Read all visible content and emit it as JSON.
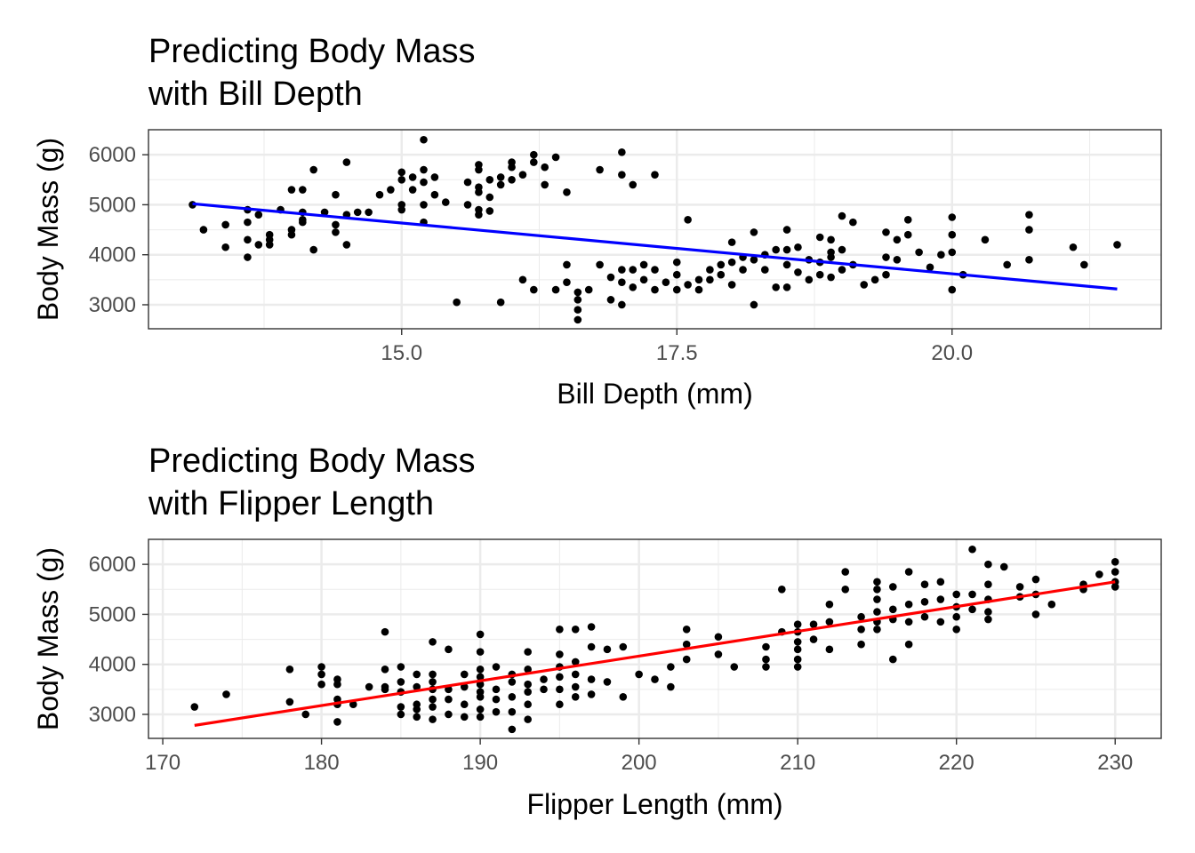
{
  "chart_data": [
    {
      "type": "scatter",
      "title": "Predicting Body Mass\nwith Bill Depth",
      "title_lines": [
        "Predicting Body Mass",
        "with Bill Depth"
      ],
      "xlabel": "Bill Depth (mm)",
      "ylabel": "Body Mass (g)",
      "xlim": [
        12.7,
        21.9
      ],
      "ylim": [
        2520,
        6500
      ],
      "xticks": [
        15.0,
        17.5,
        20.0
      ],
      "xtick_labels": [
        "15.0",
        "17.5",
        "20.0"
      ],
      "yticks": [
        3000,
        4000,
        5000,
        6000
      ],
      "ytick_labels": [
        "3000",
        "4000",
        "5000",
        "6000"
      ],
      "grid": true,
      "point_color": "#000000",
      "fit_line": {
        "color": "#0000ff",
        "x": [
          13.1,
          21.5
        ],
        "y": [
          5020,
          3315
        ]
      },
      "points": [
        [
          13.1,
          5000
        ],
        [
          13.2,
          4500
        ],
        [
          13.4,
          4600
        ],
        [
          13.4,
          4150
        ],
        [
          13.6,
          4900
        ],
        [
          13.6,
          4650
        ],
        [
          13.6,
          4300
        ],
        [
          13.6,
          3950
        ],
        [
          13.7,
          4800
        ],
        [
          13.7,
          4200
        ],
        [
          13.8,
          4400
        ],
        [
          13.8,
          4300
        ],
        [
          13.8,
          4200
        ],
        [
          13.9,
          4900
        ],
        [
          14.0,
          5300
        ],
        [
          14.0,
          4500
        ],
        [
          14.0,
          4400
        ],
        [
          14.1,
          5300
        ],
        [
          14.1,
          4850
        ],
        [
          14.1,
          4700
        ],
        [
          14.1,
          4650
        ],
        [
          14.2,
          5700
        ],
        [
          14.2,
          4100
        ],
        [
          14.3,
          4850
        ],
        [
          14.4,
          5200
        ],
        [
          14.4,
          4600
        ],
        [
          14.4,
          4450
        ],
        [
          14.5,
          5850
        ],
        [
          14.5,
          4800
        ],
        [
          14.5,
          4200
        ],
        [
          14.6,
          4850
        ],
        [
          14.7,
          4850
        ],
        [
          14.8,
          5200
        ],
        [
          14.9,
          5300
        ],
        [
          15.0,
          5650
        ],
        [
          15.0,
          5500
        ],
        [
          15.0,
          5000
        ],
        [
          15.0,
          4900
        ],
        [
          15.1,
          5550
        ],
        [
          15.1,
          5300
        ],
        [
          15.2,
          6300
        ],
        [
          15.2,
          5700
        ],
        [
          15.2,
          5450
        ],
        [
          15.2,
          5000
        ],
        [
          15.2,
          4650
        ],
        [
          15.3,
          5550
        ],
        [
          15.3,
          5200
        ],
        [
          15.4,
          5050
        ],
        [
          15.5,
          3050
        ],
        [
          15.6,
          5450
        ],
        [
          15.6,
          5000
        ],
        [
          15.7,
          5800
        ],
        [
          15.7,
          5700
        ],
        [
          15.7,
          5350
        ],
        [
          15.7,
          5250
        ],
        [
          15.7,
          4900
        ],
        [
          15.7,
          4800
        ],
        [
          15.8,
          5500
        ],
        [
          15.8,
          5150
        ],
        [
          15.8,
          4875
        ],
        [
          15.9,
          5550
        ],
        [
          15.9,
          5400
        ],
        [
          15.9,
          3050
        ],
        [
          16.0,
          5850
        ],
        [
          16.0,
          5750
        ],
        [
          16.0,
          5500
        ],
        [
          16.1,
          5600
        ],
        [
          16.1,
          3500
        ],
        [
          16.2,
          6000
        ],
        [
          16.2,
          5850
        ],
        [
          16.2,
          3300
        ],
        [
          16.3,
          5750
        ],
        [
          16.3,
          5400
        ],
        [
          16.4,
          5950
        ],
        [
          16.4,
          3300
        ],
        [
          16.5,
          5250
        ],
        [
          16.5,
          3800
        ],
        [
          16.5,
          3450
        ],
        [
          16.6,
          3250
        ],
        [
          16.6,
          3100
        ],
        [
          16.6,
          2900
        ],
        [
          16.6,
          2700
        ],
        [
          16.7,
          3300
        ],
        [
          16.8,
          5700
        ],
        [
          16.8,
          3800
        ],
        [
          16.9,
          3550
        ],
        [
          16.9,
          3100
        ],
        [
          17.0,
          6050
        ],
        [
          17.0,
          5600
        ],
        [
          17.0,
          3700
        ],
        [
          17.0,
          3450
        ],
        [
          17.0,
          3000
        ],
        [
          17.1,
          5400
        ],
        [
          17.1,
          3700
        ],
        [
          17.1,
          3350
        ],
        [
          17.2,
          3800
        ],
        [
          17.2,
          3500
        ],
        [
          17.3,
          5600
        ],
        [
          17.3,
          3700
        ],
        [
          17.3,
          3300
        ],
        [
          17.4,
          3450
        ],
        [
          17.5,
          3850
        ],
        [
          17.5,
          3600
        ],
        [
          17.5,
          3300
        ],
        [
          17.6,
          4700
        ],
        [
          17.6,
          3400
        ],
        [
          17.7,
          3500
        ],
        [
          17.7,
          3300
        ],
        [
          17.8,
          3700
        ],
        [
          17.8,
          3500
        ],
        [
          17.9,
          3800
        ],
        [
          17.9,
          3600
        ],
        [
          18.0,
          4250
        ],
        [
          18.0,
          3850
        ],
        [
          18.0,
          3400
        ],
        [
          18.1,
          3950
        ],
        [
          18.1,
          3700
        ],
        [
          18.2,
          4450
        ],
        [
          18.2,
          3900
        ],
        [
          18.2,
          3000
        ],
        [
          18.3,
          4000
        ],
        [
          18.3,
          3700
        ],
        [
          18.4,
          4100
        ],
        [
          18.4,
          3350
        ],
        [
          18.5,
          4500
        ],
        [
          18.5,
          4100
        ],
        [
          18.5,
          3800
        ],
        [
          18.5,
          3350
        ],
        [
          18.6,
          4150
        ],
        [
          18.6,
          3650
        ],
        [
          18.7,
          3900
        ],
        [
          18.7,
          3500
        ],
        [
          18.8,
          4350
        ],
        [
          18.8,
          3850
        ],
        [
          18.8,
          3600
        ],
        [
          18.9,
          4300
        ],
        [
          18.9,
          4050
        ],
        [
          18.9,
          3950
        ],
        [
          18.9,
          3550
        ],
        [
          19.0,
          4775
        ],
        [
          19.0,
          4100
        ],
        [
          19.0,
          3700
        ],
        [
          19.1,
          4650
        ],
        [
          19.1,
          3800
        ],
        [
          19.2,
          3400
        ],
        [
          19.3,
          3500
        ],
        [
          19.4,
          4450
        ],
        [
          19.4,
          3950
        ],
        [
          19.4,
          3600
        ],
        [
          19.5,
          4300
        ],
        [
          19.5,
          3900
        ],
        [
          19.6,
          4700
        ],
        [
          19.6,
          4400
        ],
        [
          19.7,
          4050
        ],
        [
          19.8,
          3750
        ],
        [
          19.9,
          4000
        ],
        [
          20.0,
          4750
        ],
        [
          20.0,
          4400
        ],
        [
          20.0,
          4050
        ],
        [
          20.0,
          3300
        ],
        [
          20.1,
          3600
        ],
        [
          20.3,
          4300
        ],
        [
          20.5,
          3800
        ],
        [
          20.7,
          4800
        ],
        [
          20.7,
          4500
        ],
        [
          20.7,
          3900
        ],
        [
          21.1,
          4150
        ],
        [
          21.2,
          3800
        ],
        [
          21.5,
          4200
        ]
      ]
    },
    {
      "type": "scatter",
      "title": "Predicting Body Mass\nwith Flipper Length",
      "title_lines": [
        "Predicting Body Mass",
        "with Flipper Length"
      ],
      "xlabel": "Flipper Length (mm)",
      "ylabel": "Body Mass (g)",
      "xlim": [
        169.1,
        232.9
      ],
      "ylim": [
        2520,
        6500
      ],
      "xticks": [
        170,
        180,
        190,
        200,
        210,
        220,
        230
      ],
      "xtick_labels": [
        "170",
        "180",
        "190",
        "200",
        "210",
        "220",
        "230"
      ],
      "yticks": [
        3000,
        4000,
        5000,
        6000
      ],
      "ytick_labels": [
        "3000",
        "4000",
        "5000",
        "6000"
      ],
      "grid": true,
      "point_color": "#000000",
      "fit_line": {
        "color": "#ff0000",
        "x": [
          172,
          230
        ],
        "y": [
          2780,
          5650
        ]
      },
      "points": [
        [
          172,
          3150
        ],
        [
          174,
          3400
        ],
        [
          178,
          3900
        ],
        [
          178,
          3250
        ],
        [
          179,
          3000
        ],
        [
          180,
          3950
        ],
        [
          180,
          3800
        ],
        [
          180,
          3600
        ],
        [
          181,
          3700
        ],
        [
          181,
          3600
        ],
        [
          181,
          3300
        ],
        [
          181,
          3200
        ],
        [
          181,
          2850
        ],
        [
          182,
          3200
        ],
        [
          183,
          3550
        ],
        [
          184,
          4650
        ],
        [
          184,
          3900
        ],
        [
          184,
          3550
        ],
        [
          184,
          3500
        ],
        [
          185,
          3950
        ],
        [
          185,
          3650
        ],
        [
          185,
          3450
        ],
        [
          185,
          3150
        ],
        [
          185,
          3000
        ],
        [
          186,
          3800
        ],
        [
          186,
          3550
        ],
        [
          186,
          3200
        ],
        [
          186,
          3100
        ],
        [
          186,
          2950
        ],
        [
          187,
          4450
        ],
        [
          187,
          3800
        ],
        [
          187,
          3650
        ],
        [
          187,
          3500
        ],
        [
          187,
          3300
        ],
        [
          187,
          3150
        ],
        [
          187,
          2900
        ],
        [
          188,
          4300
        ],
        [
          188,
          3500
        ],
        [
          188,
          3300
        ],
        [
          188,
          3000
        ],
        [
          189,
          3800
        ],
        [
          189,
          3550
        ],
        [
          189,
          3200
        ],
        [
          189,
          2950
        ],
        [
          190,
          4600
        ],
        [
          190,
          4250
        ],
        [
          190,
          3900
        ],
        [
          190,
          3750
        ],
        [
          190,
          3600
        ],
        [
          190,
          3450
        ],
        [
          190,
          3350
        ],
        [
          190,
          3100
        ],
        [
          190,
          2950
        ],
        [
          191,
          3950
        ],
        [
          191,
          3500
        ],
        [
          191,
          3300
        ],
        [
          191,
          3050
        ],
        [
          192,
          3800
        ],
        [
          192,
          3650
        ],
        [
          192,
          3350
        ],
        [
          192,
          3050
        ],
        [
          192,
          2700
        ],
        [
          193,
          4250
        ],
        [
          193,
          3900
        ],
        [
          193,
          3600
        ],
        [
          193,
          3450
        ],
        [
          193,
          3200
        ],
        [
          193,
          2900
        ],
        [
          194,
          3700
        ],
        [
          194,
          3500
        ],
        [
          195,
          4700
        ],
        [
          195,
          4200
        ],
        [
          195,
          3950
        ],
        [
          195,
          3750
        ],
        [
          195,
          3500
        ],
        [
          195,
          3200
        ],
        [
          196,
          4700
        ],
        [
          196,
          4050
        ],
        [
          196,
          3800
        ],
        [
          196,
          3550
        ],
        [
          196,
          3350
        ],
        [
          197,
          4750
        ],
        [
          197,
          4350
        ],
        [
          197,
          3700
        ],
        [
          197,
          3400
        ],
        [
          198,
          4300
        ],
        [
          198,
          3650
        ],
        [
          199,
          4350
        ],
        [
          199,
          3350
        ],
        [
          200,
          3800
        ],
        [
          201,
          3700
        ],
        [
          202,
          3950
        ],
        [
          202,
          3550
        ],
        [
          203,
          4700
        ],
        [
          203,
          4400
        ],
        [
          203,
          4100
        ],
        [
          205,
          4550
        ],
        [
          205,
          4200
        ],
        [
          206,
          3950
        ],
        [
          208,
          4350
        ],
        [
          208,
          4100
        ],
        [
          208,
          3950
        ],
        [
          209,
          5500
        ],
        [
          209,
          4650
        ],
        [
          210,
          4800
        ],
        [
          210,
          4650
        ],
        [
          210,
          4450
        ],
        [
          210,
          4300
        ],
        [
          210,
          4100
        ],
        [
          210,
          3950
        ],
        [
          211,
          4800
        ],
        [
          211,
          4500
        ],
        [
          212,
          5200
        ],
        [
          212,
          4850
        ],
        [
          212,
          4300
        ],
        [
          213,
          5850
        ],
        [
          213,
          5500
        ],
        [
          214,
          4950
        ],
        [
          214,
          4700
        ],
        [
          214,
          4400
        ],
        [
          215,
          5650
        ],
        [
          215,
          5500
        ],
        [
          215,
          5300
        ],
        [
          215,
          5050
        ],
        [
          215,
          4850
        ],
        [
          215,
          4700
        ],
        [
          216,
          5550
        ],
        [
          216,
          5100
        ],
        [
          216,
          4900
        ],
        [
          216,
          4100
        ],
        [
          217,
          5850
        ],
        [
          217,
          5200
        ],
        [
          217,
          4850
        ],
        [
          217,
          4400
        ],
        [
          218,
          5600
        ],
        [
          218,
          5250
        ],
        [
          218,
          4950
        ],
        [
          219,
          5650
        ],
        [
          219,
          5300
        ],
        [
          219,
          4850
        ],
        [
          220,
          5400
        ],
        [
          220,
          5150
        ],
        [
          220,
          4950
        ],
        [
          220,
          4700
        ],
        [
          221,
          6300
        ],
        [
          221,
          5400
        ],
        [
          221,
          5100
        ],
        [
          222,
          6000
        ],
        [
          222,
          5600
        ],
        [
          222,
          5300
        ],
        [
          222,
          5050
        ],
        [
          222,
          4900
        ],
        [
          223,
          5950
        ],
        [
          224,
          5550
        ],
        [
          224,
          5350
        ],
        [
          225,
          5700
        ],
        [
          225,
          5400
        ],
        [
          225,
          5000
        ],
        [
          226,
          5200
        ],
        [
          228,
          5600
        ],
        [
          228,
          5500
        ],
        [
          229,
          5800
        ],
        [
          230,
          6050
        ],
        [
          230,
          5850
        ],
        [
          230,
          5650
        ],
        [
          230,
          5550
        ]
      ]
    }
  ]
}
